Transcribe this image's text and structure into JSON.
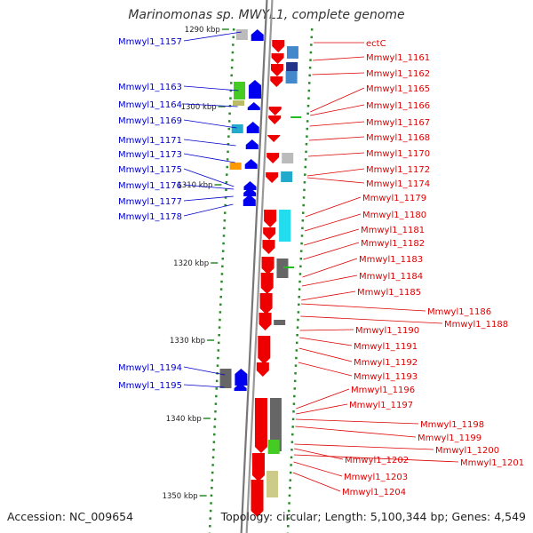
{
  "title": "Marinomonas sp. MWYL1, complete genome",
  "accession": "Accession: NC_009654",
  "topology": "Topology: circular; Length: 5,100,344 bp; Genes: 4,549",
  "colors": {
    "forward": "#0000ee",
    "reverse": "#ee0000",
    "backbone": "#888888",
    "tick": "#2a8a2a",
    "link_forward": "#0000cc",
    "link_reverse": "#dd0000"
  },
  "scale_labels": [
    "1290 kbp",
    "1300 kbp",
    "1310 kbp",
    "1320 kbp",
    "1330 kbp",
    "1340 kbp",
    "1350 kbp"
  ],
  "left_genes": [
    "Mmwyl1_1157",
    "Mmwyl1_1163",
    "Mmwyl1_1164",
    "Mmwyl1_1169",
    "Mmwyl1_1171",
    "Mmwyl1_1173",
    "Mmwyl1_1175",
    "Mmwyl1_1176",
    "Mmwyl1_1177",
    "Mmwyl1_1178",
    "Mmwyl1_1194",
    "Mmwyl1_1195"
  ],
  "right_genes": [
    "ectC",
    "Mmwyl1_1161",
    "Mmwyl1_1162",
    "Mmwyl1_1165",
    "Mmwyl1_1166",
    "Mmwyl1_1167",
    "Mmwyl1_1168",
    "Mmwyl1_1170",
    "Mmwyl1_1172",
    "Mmwyl1_1174",
    "Mmwyl1_1179",
    "Mmwyl1_1180",
    "Mmwyl1_1181",
    "Mmwyl1_1182",
    "Mmwyl1_1183",
    "Mmwyl1_1184",
    "Mmwyl1_1185",
    "Mmwyl1_1186",
    "Mmwyl1_1188",
    "Mmwyl1_1190",
    "Mmwyl1_1191",
    "Mmwyl1_1192",
    "Mmwyl1_1193",
    "Mmwyl1_1196",
    "Mmwyl1_1197",
    "Mmwyl1_1198",
    "Mmwyl1_1199",
    "Mmwyl1_1200",
    "Mmwyl1_1201",
    "Mmwyl1_1202",
    "Mmwyl1_1203",
    "Mmwyl1_1204"
  ]
}
